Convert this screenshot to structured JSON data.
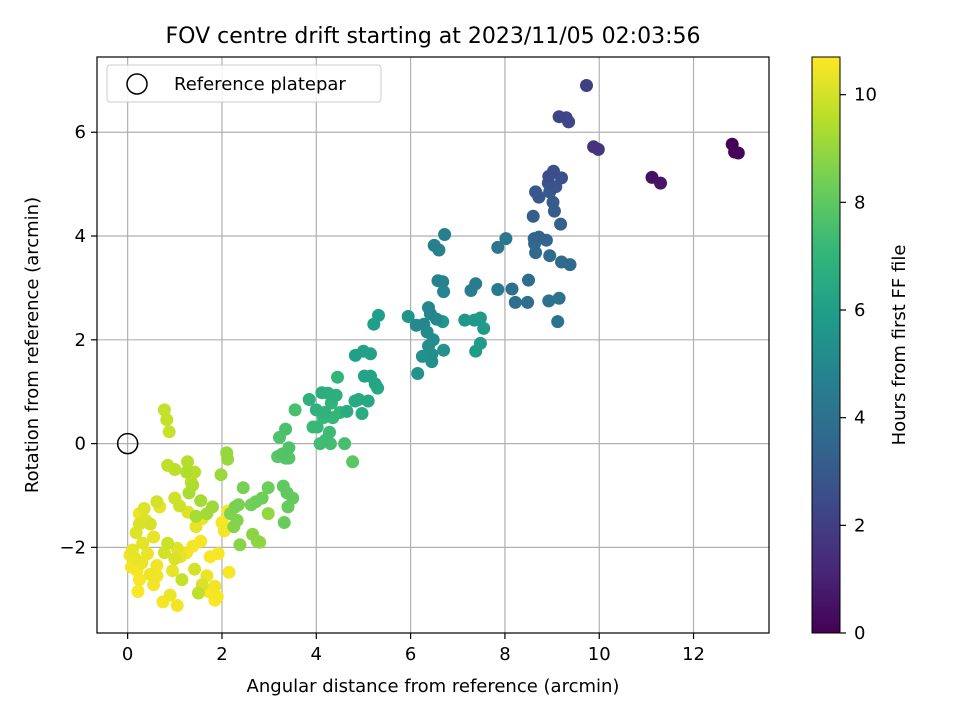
{
  "chart_data": {
    "type": "scatter",
    "title": "FOV centre drift starting at 2023/11/05 02:03:56",
    "xlabel": "Angular distance from reference (arcmin)",
    "ylabel": "Rotation from reference (arcmin)",
    "xlim": [
      -0.65,
      13.6
    ],
    "ylim": [
      -3.65,
      7.45
    ],
    "xticks": [
      0,
      2,
      4,
      6,
      8,
      10,
      12
    ],
    "yticks": [
      -2,
      0,
      2,
      4,
      6
    ],
    "grid": true,
    "legend": {
      "position": "top-left",
      "entries": [
        "Reference platepar"
      ]
    },
    "reference_point": {
      "x": 0,
      "y": 0,
      "label": "Reference platepar"
    },
    "colorbar": {
      "label": "Hours from first FF file",
      "colormap": "viridis",
      "range": [
        0,
        10.7
      ],
      "ticks": [
        0,
        2,
        4,
        6,
        8,
        10
      ]
    },
    "colormap_stops": [
      "#440154",
      "#482878",
      "#3e4989",
      "#31688e",
      "#26828e",
      "#1f9e89",
      "#35b779",
      "#6ece58",
      "#b5de2b",
      "#fde725"
    ],
    "points": [
      [
        12.82,
        5.77,
        0.05
      ],
      [
        12.87,
        5.62,
        0.1
      ],
      [
        12.95,
        5.6,
        0.15
      ],
      [
        11.12,
        5.13,
        0.5
      ],
      [
        11.3,
        5.02,
        0.6
      ],
      [
        9.88,
        5.72,
        1.6
      ],
      [
        9.98,
        5.67,
        1.7
      ],
      [
        9.73,
        6.9,
        2.0
      ],
      [
        9.15,
        6.3,
        2.2
      ],
      [
        9.3,
        6.28,
        2.3
      ],
      [
        9.35,
        6.2,
        2.35
      ],
      [
        8.93,
        5.15,
        2.5
      ],
      [
        9.03,
        5.25,
        2.6
      ],
      [
        9.2,
        5.12,
        2.7
      ],
      [
        8.92,
        5.02,
        2.8
      ],
      [
        9.08,
        4.95,
        2.85
      ],
      [
        8.65,
        4.85,
        2.9
      ],
      [
        8.72,
        4.75,
        2.95
      ],
      [
        8.95,
        4.85,
        3.0
      ],
      [
        9.02,
        4.65,
        3.05
      ],
      [
        9.05,
        4.48,
        3.1
      ],
      [
        8.6,
        4.38,
        3.2
      ],
      [
        9.18,
        4.23,
        3.3
      ],
      [
        8.72,
        3.98,
        3.4
      ],
      [
        8.62,
        3.95,
        3.45
      ],
      [
        8.88,
        3.92,
        3.5
      ],
      [
        8.63,
        3.85,
        3.55
      ],
      [
        8.65,
        3.68,
        3.6
      ],
      [
        8.95,
        3.62,
        3.65
      ],
      [
        9.2,
        3.5,
        3.7
      ],
      [
        9.38,
        3.45,
        3.75
      ],
      [
        8.5,
        3.15,
        3.8
      ],
      [
        8.15,
        2.98,
        3.85
      ],
      [
        8.22,
        2.72,
        3.9
      ],
      [
        8.48,
        2.72,
        3.95
      ],
      [
        8.93,
        2.75,
        4.0
      ],
      [
        9.15,
        2.8,
        4.05
      ],
      [
        9.12,
        2.35,
        4.1
      ],
      [
        7.85,
        3.78,
        4.2
      ],
      [
        8.02,
        3.95,
        4.3
      ],
      [
        7.85,
        2.97,
        4.4
      ],
      [
        7.38,
        3.08,
        4.5
      ],
      [
        7.28,
        2.95,
        4.55
      ],
      [
        6.72,
        4.03,
        4.6
      ],
      [
        6.5,
        3.82,
        4.65
      ],
      [
        6.6,
        3.73,
        4.7
      ],
      [
        6.58,
        3.14,
        4.75
      ],
      [
        6.68,
        3.12,
        4.8
      ],
      [
        6.7,
        2.93,
        4.85
      ],
      [
        6.38,
        2.62,
        4.9
      ],
      [
        6.42,
        2.5,
        4.95
      ],
      [
        6.55,
        2.4,
        5.0
      ],
      [
        6.28,
        2.3,
        5.05
      ],
      [
        6.12,
        2.28,
        5.1
      ],
      [
        6.35,
        2.15,
        5.15
      ],
      [
        6.48,
        2.0,
        5.2
      ],
      [
        6.38,
        1.88,
        5.25
      ],
      [
        6.45,
        1.72,
        5.3
      ],
      [
        6.25,
        1.68,
        5.35
      ],
      [
        6.45,
        1.58,
        5.4
      ],
      [
        6.7,
        1.8,
        5.45
      ],
      [
        6.15,
        1.35,
        5.5
      ],
      [
        5.95,
        2.45,
        5.55
      ],
      [
        6.68,
        2.35,
        5.6
      ],
      [
        7.15,
        2.38,
        5.65
      ],
      [
        7.35,
        2.38,
        5.7
      ],
      [
        7.48,
        2.42,
        5.75
      ],
      [
        7.55,
        2.22,
        5.8
      ],
      [
        7.48,
        1.93,
        5.85
      ],
      [
        7.38,
        1.78,
        5.9
      ],
      [
        5.32,
        2.47,
        5.95
      ],
      [
        5.22,
        2.3,
        6.0
      ],
      [
        4.83,
        1.7,
        6.05
      ],
      [
        5.0,
        1.78,
        6.1
      ],
      [
        5.15,
        1.73,
        6.15
      ],
      [
        5.02,
        1.3,
        6.2
      ],
      [
        5.15,
        1.3,
        6.25
      ],
      [
        5.25,
        1.15,
        6.3
      ],
      [
        5.3,
        1.07,
        6.35
      ],
      [
        5.1,
        0.82,
        6.4
      ],
      [
        4.9,
        0.85,
        6.45
      ],
      [
        4.82,
        0.82,
        6.5
      ],
      [
        4.97,
        0.58,
        6.55
      ],
      [
        4.65,
        0.62,
        6.6
      ],
      [
        4.12,
        0.98,
        6.65
      ],
      [
        4.25,
        0.97,
        6.7
      ],
      [
        4.42,
        0.93,
        6.75
      ],
      [
        3.85,
        0.85,
        6.8
      ],
      [
        4.0,
        0.65,
        6.85
      ],
      [
        4.18,
        0.6,
        6.9
      ],
      [
        4.32,
        0.78,
        6.95
      ],
      [
        4.45,
        1.28,
        7.0
      ],
      [
        4.5,
        0.6,
        7.05
      ],
      [
        4.35,
        0.5,
        7.1
      ],
      [
        4.15,
        0.5,
        7.15
      ],
      [
        4.02,
        0.32,
        7.2
      ],
      [
        3.93,
        0.32,
        7.25
      ],
      [
        4.28,
        0.22,
        7.3
      ],
      [
        4.2,
        0.07,
        7.35
      ],
      [
        4.08,
        0.0,
        7.4
      ],
      [
        4.3,
        0.0,
        7.45
      ],
      [
        4.6,
        0.0,
        7.5
      ],
      [
        3.55,
        0.65,
        7.55
      ],
      [
        3.35,
        0.28,
        7.6
      ],
      [
        3.22,
        0.12,
        7.65
      ],
      [
        3.42,
        -0.08,
        7.7
      ],
      [
        3.28,
        -0.2,
        7.75
      ],
      [
        3.35,
        -0.28,
        7.8
      ],
      [
        3.42,
        -0.28,
        7.85
      ],
      [
        3.18,
        -0.25,
        7.9
      ],
      [
        4.77,
        -0.35,
        7.95
      ],
      [
        3.3,
        -0.82,
        8.0
      ],
      [
        3.38,
        -0.95,
        8.05
      ],
      [
        3.5,
        -1.05,
        8.1
      ],
      [
        3.4,
        -1.22,
        8.15
      ],
      [
        3.32,
        -1.52,
        8.2
      ],
      [
        2.98,
        -0.85,
        8.25
      ],
      [
        2.85,
        -1.05,
        8.3
      ],
      [
        2.72,
        -1.12,
        8.35
      ],
      [
        2.62,
        -1.18,
        8.4
      ],
      [
        2.45,
        -0.85,
        8.45
      ],
      [
        2.35,
        -1.18,
        8.5
      ],
      [
        2.28,
        -1.22,
        8.55
      ],
      [
        2.18,
        -1.35,
        8.6
      ],
      [
        2.32,
        -1.48,
        8.65
      ],
      [
        2.25,
        -1.6,
        8.7
      ],
      [
        2.38,
        -1.95,
        8.75
      ],
      [
        2.65,
        -1.75,
        8.8
      ],
      [
        2.75,
        -1.88,
        8.85
      ],
      [
        2.8,
        -1.9,
        8.9
      ],
      [
        2.98,
        -1.35,
        8.95
      ],
      [
        2.1,
        -0.18,
        9.0
      ],
      [
        2.12,
        -0.3,
        9.05
      ],
      [
        1.98,
        -0.6,
        9.1
      ],
      [
        1.8,
        -1.22,
        9.15
      ],
      [
        1.68,
        -1.35,
        9.2
      ],
      [
        1.55,
        -1.1,
        9.25
      ],
      [
        1.45,
        -1.4,
        9.3
      ],
      [
        1.3,
        -0.95,
        9.35
      ],
      [
        1.38,
        -0.8,
        9.4
      ],
      [
        1.25,
        -0.55,
        9.45
      ],
      [
        1.27,
        -0.35,
        9.5
      ],
      [
        1.42,
        -0.55,
        9.55
      ],
      [
        1.35,
        -0.75,
        9.6
      ],
      [
        1.0,
        -0.5,
        9.65
      ],
      [
        0.85,
        -0.42,
        9.7
      ],
      [
        0.78,
        0.65,
        9.75
      ],
      [
        0.83,
        0.46,
        9.8
      ],
      [
        0.88,
        0.23,
        9.85
      ],
      [
        1.0,
        -1.05,
        9.9
      ],
      [
        1.1,
        -1.2,
        9.95
      ],
      [
        0.62,
        -1.12,
        10.0
      ],
      [
        0.48,
        -1.55,
        10.05
      ],
      [
        0.25,
        -1.55,
        10.1
      ],
      [
        0.38,
        -1.48,
        10.15
      ],
      [
        0.18,
        -1.72,
        10.2
      ],
      [
        0.32,
        -1.92,
        10.25
      ],
      [
        0.1,
        -2.05,
        10.3
      ],
      [
        0.15,
        -2.2,
        10.35
      ],
      [
        0.3,
        -2.3,
        10.4
      ],
      [
        0.48,
        -2.52,
        10.45
      ],
      [
        0.62,
        -2.35,
        10.5
      ],
      [
        0.55,
        -2.72,
        10.55
      ],
      [
        0.25,
        -2.62,
        10.6
      ],
      [
        0.22,
        -2.85,
        10.65
      ],
      [
        0.85,
        -1.92,
        9.9
      ],
      [
        0.78,
        -2.1,
        10.0
      ],
      [
        1.0,
        -2.22,
        10.1
      ],
      [
        1.05,
        -2.02,
        10.2
      ],
      [
        1.12,
        -2.18,
        10.3
      ],
      [
        1.15,
        -2.62,
        9.8
      ],
      [
        1.42,
        -2.42,
        10.0
      ],
      [
        1.5,
        -2.88,
        9.7
      ],
      [
        1.58,
        -2.72,
        10.1
      ],
      [
        1.68,
        -2.55,
        10.4
      ],
      [
        1.72,
        -2.85,
        10.6
      ],
      [
        1.85,
        -2.75,
        10.5
      ],
      [
        1.9,
        -2.95,
        10.6
      ],
      [
        1.85,
        -3.02,
        10.65
      ],
      [
        0.75,
        -3.05,
        10.55
      ],
      [
        0.9,
        -2.92,
        10.45
      ],
      [
        1.05,
        -3.12,
        10.5
      ],
      [
        1.25,
        -2.1,
        10.5
      ],
      [
        1.38,
        -1.98,
        10.55
      ],
      [
        1.55,
        -1.88,
        10.6
      ],
      [
        1.75,
        -2.18,
        10.62
      ],
      [
        1.92,
        -2.12,
        10.6
      ],
      [
        2.05,
        -1.68,
        10.55
      ],
      [
        2.12,
        -1.3,
        10.65
      ],
      [
        2.0,
        -1.52,
        10.6
      ],
      [
        2.15,
        -2.48,
        10.6
      ],
      [
        1.28,
        -1.32,
        10.2
      ],
      [
        1.45,
        -1.6,
        10.3
      ],
      [
        1.58,
        -1.45,
        10.4
      ],
      [
        0.68,
        -1.22,
        10.3
      ],
      [
        0.55,
        -1.8,
        10.35
      ],
      [
        0.42,
        -2.12,
        10.4
      ],
      [
        0.35,
        -1.25,
        10.2
      ],
      [
        0.25,
        -1.35,
        10.4
      ],
      [
        0.05,
        -2.15,
        10.5
      ],
      [
        0.08,
        -2.38,
        10.55
      ],
      [
        0.2,
        -2.45,
        10.62
      ],
      [
        0.62,
        -2.55,
        10.48
      ],
      [
        0.95,
        -2.45,
        10.3
      ]
    ]
  }
}
